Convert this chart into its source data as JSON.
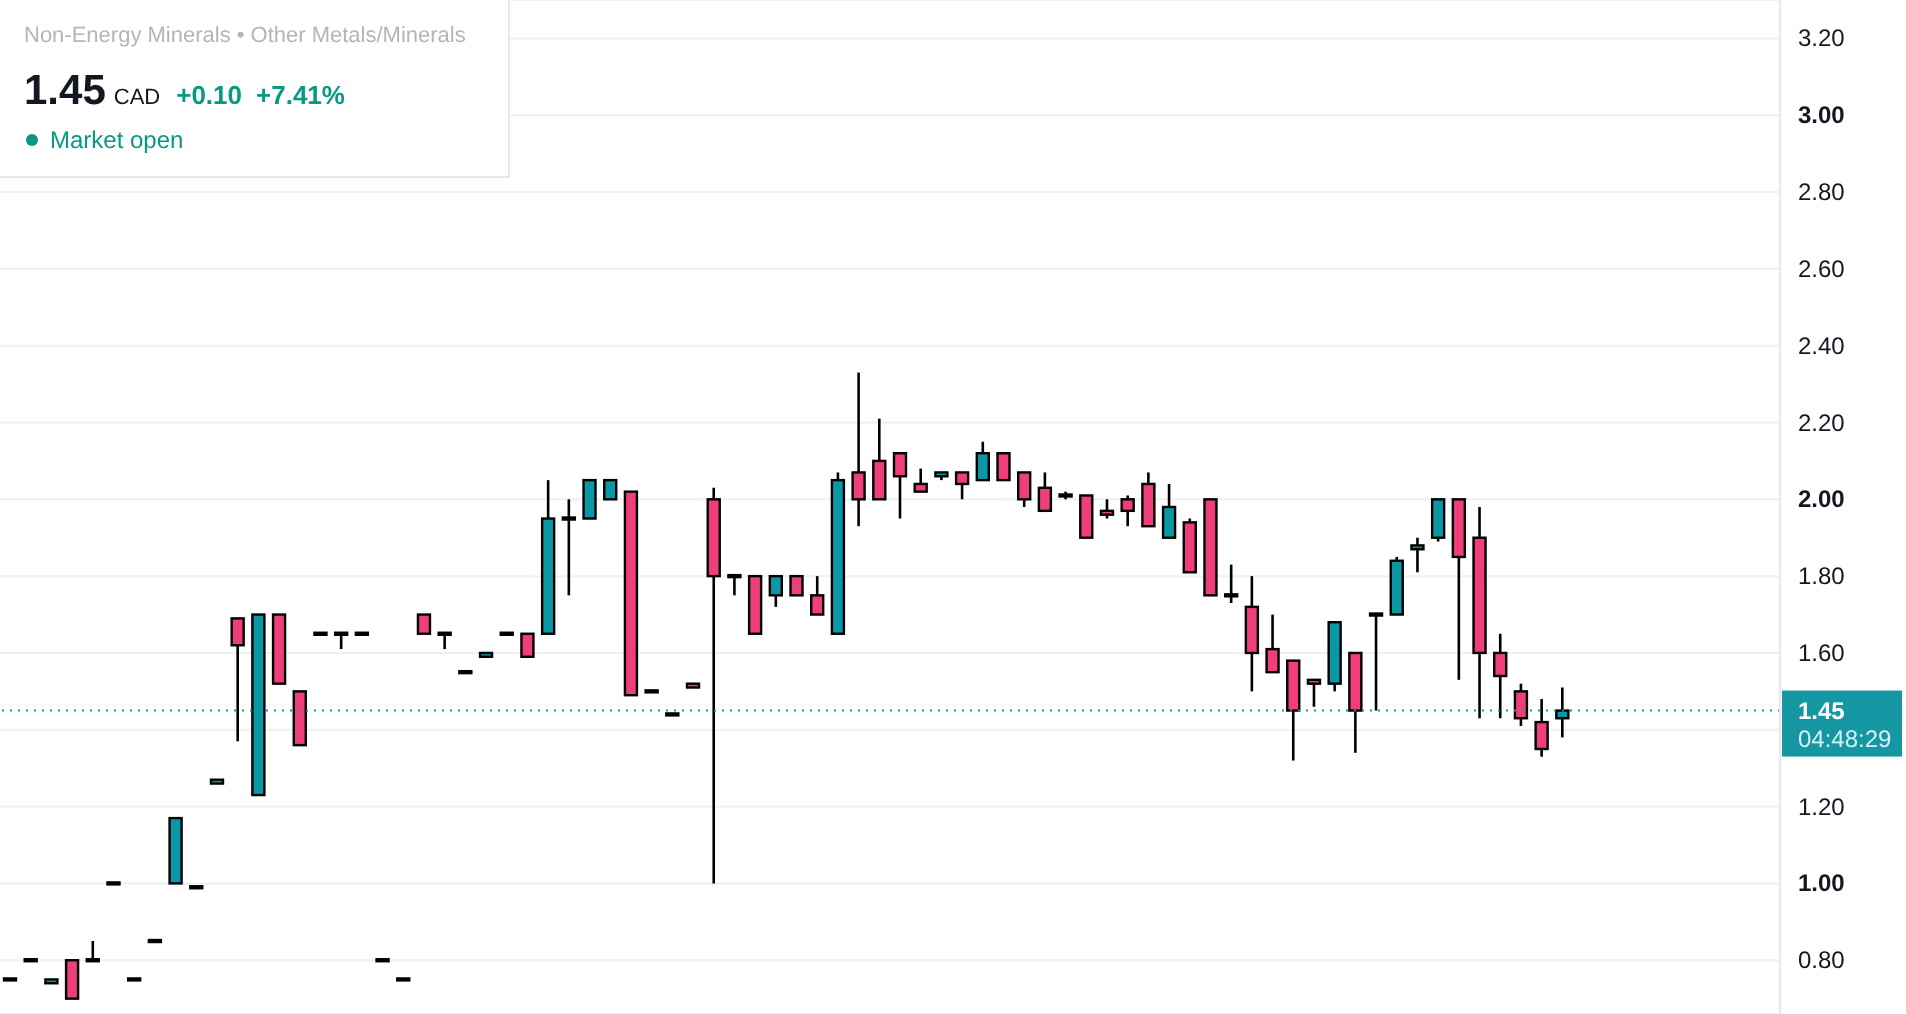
{
  "chart_data": {
    "type": "candlestick",
    "subtitle": "Non-Energy Minerals • Other Metals/Minerals",
    "categories": [
      null,
      null,
      null,
      null,
      null,
      null,
      null,
      null,
      null,
      null,
      null,
      null,
      null,
      null,
      null,
      null,
      null,
      null,
      null,
      null,
      null,
      null,
      null,
      null,
      null,
      null,
      null,
      null,
      null,
      null,
      null,
      null,
      null,
      null,
      null,
      null,
      null,
      null,
      null,
      null,
      null,
      null,
      null,
      null,
      null,
      null,
      null,
      null,
      null,
      null,
      null,
      null,
      null,
      null,
      null,
      null,
      null,
      null,
      null,
      null,
      null,
      null,
      null,
      null,
      null,
      null,
      null,
      null,
      null,
      null,
      null,
      null,
      null,
      null,
      null,
      null,
      null,
      null,
      null,
      null,
      null,
      null,
      null,
      null,
      null,
      null
    ],
    "ohlc": [
      [
        0.75,
        0.75,
        0.75,
        0.75
      ],
      [
        0.8,
        0.8,
        0.8,
        0.8
      ],
      [
        0.74,
        0.75,
        0.74,
        0.75
      ],
      [
        0.8,
        0.8,
        0.7,
        0.7
      ],
      [
        0.8,
        0.85,
        0.8,
        0.8
      ],
      [
        1,
        1,
        1,
        1
      ],
      [
        0.75,
        0.75,
        0.75,
        0.75
      ],
      [
        0.85,
        0.85,
        0.85,
        0.85
      ],
      [
        1,
        1.17,
        1,
        1.17
      ],
      [
        0.99,
        0.99,
        0.99,
        0.99
      ],
      [
        1.26,
        1.27,
        1.26,
        1.27
      ],
      [
        1.69,
        1.69,
        1.37,
        1.62
      ],
      [
        1.23,
        1.7,
        1.23,
        1.7
      ],
      [
        1.7,
        1.7,
        1.52,
        1.52
      ],
      [
        1.5,
        1.5,
        1.36,
        1.36
      ],
      [
        1.65,
        1.65,
        1.65,
        1.65
      ],
      [
        1.65,
        1.65,
        1.61,
        1.65
      ],
      [
        1.65,
        1.65,
        1.65,
        1.65
      ],
      [
        0.8,
        0.8,
        0.8,
        0.8
      ],
      [
        0.75,
        0.75,
        0.75,
        0.75
      ],
      [
        1.7,
        1.7,
        1.65,
        1.65
      ],
      [
        1.65,
        1.65,
        1.61,
        1.65
      ],
      [
        1.55,
        1.55,
        1.55,
        1.55
      ],
      [
        1.59,
        1.6,
        1.59,
        1.6
      ],
      [
        1.65,
        1.65,
        1.65,
        1.65
      ],
      [
        1.65,
        1.65,
        1.59,
        1.59
      ],
      [
        1.65,
        2.05,
        1.65,
        1.95
      ],
      [
        1.95,
        2,
        1.75,
        1.95
      ],
      [
        1.95,
        2.05,
        1.95,
        2.05
      ],
      [
        2,
        2.05,
        2,
        2.05
      ],
      [
        2.02,
        2.02,
        1.49,
        1.49
      ],
      [
        1.5,
        1.5,
        1.5,
        1.5
      ],
      [
        1.44,
        1.44,
        1.44,
        1.44
      ],
      [
        1.52,
        1.52,
        1.51,
        1.51
      ],
      [
        2,
        2.03,
        1,
        1.8
      ],
      [
        1.8,
        1.8,
        1.75,
        1.8
      ],
      [
        1.8,
        1.8,
        1.65,
        1.65
      ],
      [
        1.75,
        1.8,
        1.72,
        1.8
      ],
      [
        1.8,
        1.8,
        1.75,
        1.75
      ],
      [
        1.75,
        1.8,
        1.7,
        1.7
      ],
      [
        1.65,
        2.07,
        1.65,
        2.05
      ],
      [
        2.07,
        2.33,
        1.93,
        2
      ],
      [
        2.1,
        2.21,
        2,
        2
      ],
      [
        2.12,
        2.12,
        1.95,
        2.06
      ],
      [
        2.04,
        2.08,
        2.02,
        2.02
      ],
      [
        2.06,
        2.07,
        2.05,
        2.07
      ],
      [
        2.07,
        2.07,
        2,
        2.04
      ],
      [
        2.05,
        2.15,
        2.05,
        2.12
      ],
      [
        2.12,
        2.12,
        2.05,
        2.05
      ],
      [
        2.07,
        2.07,
        1.98,
        2
      ],
      [
        2.03,
        2.07,
        1.97,
        1.97
      ],
      [
        2.01,
        2.02,
        2,
        2.01
      ],
      [
        2.01,
        2.01,
        1.9,
        1.9
      ],
      [
        1.97,
        2,
        1.95,
        1.96
      ],
      [
        2,
        2.01,
        1.93,
        1.97
      ],
      [
        2.04,
        2.07,
        1.93,
        1.93
      ],
      [
        1.9,
        2.04,
        1.9,
        1.98
      ],
      [
        1.94,
        1.95,
        1.81,
        1.81
      ],
      [
        2,
        2,
        1.75,
        1.75
      ],
      [
        1.75,
        1.83,
        1.73,
        1.75
      ],
      [
        1.72,
        1.8,
        1.5,
        1.6
      ],
      [
        1.61,
        1.7,
        1.55,
        1.55
      ],
      [
        1.58,
        1.58,
        1.32,
        1.45
      ],
      [
        1.53,
        1.53,
        1.46,
        1.52
      ],
      [
        1.52,
        1.68,
        1.5,
        1.68
      ],
      [
        1.6,
        1.6,
        1.34,
        1.45
      ],
      [
        1.7,
        1.7,
        1.45,
        1.7
      ],
      [
        1.7,
        1.85,
        1.7,
        1.84
      ],
      [
        1.87,
        1.9,
        1.81,
        1.88
      ],
      [
        1.9,
        2,
        1.89,
        2
      ],
      [
        2,
        2,
        1.53,
        1.85
      ],
      [
        1.9,
        1.98,
        1.43,
        1.6
      ],
      [
        1.6,
        1.65,
        1.43,
        1.54
      ],
      [
        1.5,
        1.52,
        1.41,
        1.43
      ],
      [
        1.42,
        1.48,
        1.33,
        1.35
      ],
      [
        1.43,
        1.51,
        1.38,
        1.45
      ],
      null,
      null,
      null,
      null,
      null,
      null,
      null,
      null,
      null,
      null
    ],
    "colors": [
      "#0a98a5",
      "#0a98a5",
      "#0a98a5",
      "#ee3f7a",
      "#0a98a5",
      "#0a98a5",
      "#0a98a5",
      "#0a98a5",
      "#0a98a5",
      "#0a98a5",
      "#0a98a5",
      "#ee3f7a",
      "#0a98a5",
      "#ee3f7a",
      "#ee3f7a",
      "#0a98a5",
      "#0a98a5",
      "#0a98a5",
      "#0a98a5",
      "#0a98a5",
      "#ee3f7a",
      "#0a98a5",
      "#0a98a5",
      "#0a98a5",
      "#0a98a5",
      "#ee3f7a",
      "#0a98a5",
      "#0a98a5",
      "#0a98a5",
      "#0a98a5",
      "#ee3f7a",
      "#0a98a5",
      "#0a98a5",
      "#ee3f7a",
      "#ee3f7a",
      "#0a98a5",
      "#ee3f7a",
      "#0a98a5",
      "#ee3f7a",
      "#ee3f7a",
      "#0a98a5",
      "#ee3f7a",
      "#ee3f7a",
      "#ee3f7a",
      "#ee3f7a",
      "#0a98a5",
      "#ee3f7a",
      "#0a98a5",
      "#ee3f7a",
      "#ee3f7a",
      "#ee3f7a",
      "#0a98a5",
      "#ee3f7a",
      "#ee3f7a",
      "#ee3f7a",
      "#ee3f7a",
      "#0a98a5",
      "#ee3f7a",
      "#ee3f7a",
      "#0a98a5",
      "#ee3f7a",
      "#ee3f7a",
      "#ee3f7a",
      "#ee3f7a",
      "#0a98a5",
      "#ee3f7a",
      "#0a98a5",
      "#0a98a5",
      "#0a98a5",
      "#0a98a5",
      "#ee3f7a",
      "#ee3f7a",
      "#ee3f7a",
      "#ee3f7a",
      "#ee3f7a",
      "#0a98a5",
      null,
      null,
      null,
      null,
      null,
      null,
      null,
      null,
      null,
      null
    ],
    "ylim": [
      0.66,
      3.3
    ],
    "yticks": [
      {
        "value": 0.8,
        "label": "0.80"
      },
      {
        "value": 1,
        "label": "1.00"
      },
      {
        "value": 1.2,
        "label": "1.20"
      },
      {
        "value": 1.4,
        "label": null
      },
      {
        "value": 1.6,
        "label": "1.60"
      },
      {
        "value": 1.8,
        "label": "1.80"
      },
      {
        "value": 2,
        "label": "2.00"
      },
      {
        "value": 2.2,
        "label": "2.20"
      },
      {
        "value": 2.4,
        "label": "2.40"
      },
      {
        "value": 2.6,
        "label": "2.60"
      },
      {
        "value": 2.8,
        "label": "2.80"
      },
      {
        "value": 3,
        "label": "3.00"
      },
      {
        "value": 3.2,
        "label": "3.20"
      }
    ],
    "grid": "y",
    "tick_labels": "y",
    "ref_lines": [
      {
        "axis": "y",
        "value": 1.45,
        "label": "1.45",
        "color": "#1596a3",
        "line_style": "dotted"
      }
    ],
    "annotations": [
      "1.45",
      "CAD",
      "+0.10",
      "+7.41%",
      "Market open",
      "04:48:29"
    ]
  }
}
